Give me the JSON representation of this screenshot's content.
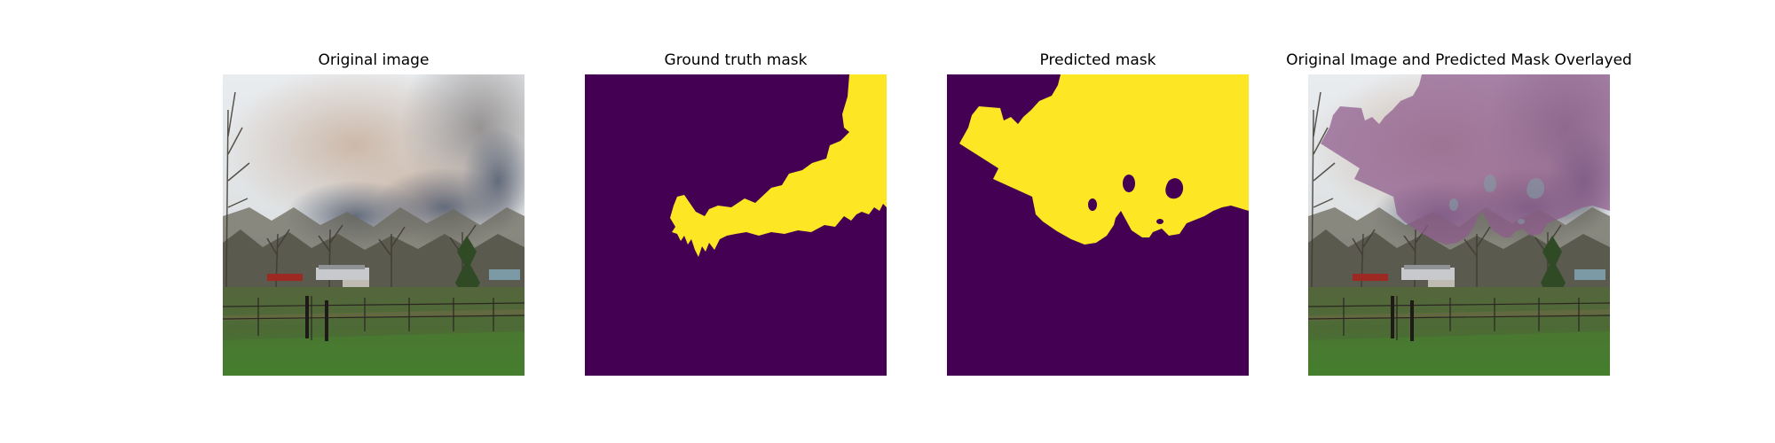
{
  "figure": {
    "panels": [
      {
        "title": "Original image"
      },
      {
        "title": "Ground truth mask"
      },
      {
        "title": "Predicted mask"
      },
      {
        "title": "Original Image and Predicted Mask Overlayed"
      }
    ]
  },
  "colors": {
    "mask_background": "#440154",
    "mask_foreground": "#fde725",
    "overlay_tint": "#8e5a8c"
  }
}
